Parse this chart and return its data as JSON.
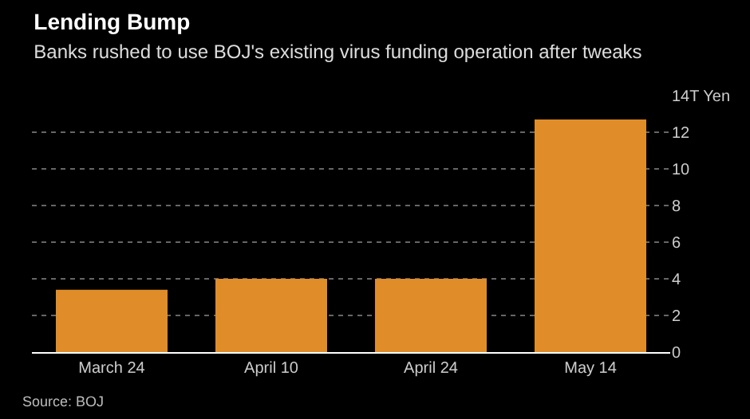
{
  "chart_data": {
    "type": "bar",
    "title": "Lending Bump",
    "subtitle": "Banks rushed to use BOJ's existing virus funding operation after tweaks",
    "categories": [
      "March 24",
      "April 10",
      "April 24",
      "May 14"
    ],
    "values": [
      3.4,
      4.0,
      4.0,
      12.7
    ],
    "color": "#e08c28",
    "ylim": [
      0,
      14
    ],
    "yticks": [
      0,
      2,
      4,
      6,
      8,
      10,
      12,
      {
        "value": 14,
        "label": "14T Yen"
      }
    ],
    "grid": "y",
    "annotations": [
      "Source: BOJ"
    ]
  }
}
